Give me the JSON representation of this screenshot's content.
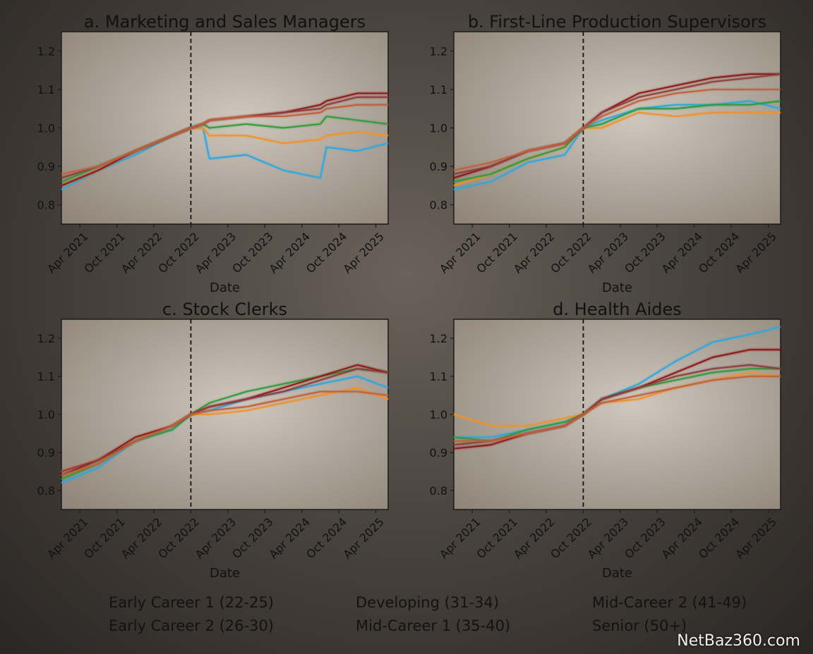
{
  "xaxis_label": "Date",
  "x_ticks": [
    "Apr 2021",
    "Oct 2021",
    "Apr 2022",
    "Oct 2022",
    "Apr 2023",
    "Oct 2023",
    "Apr 2024",
    "Oct 2024",
    "Apr 2025"
  ],
  "watermark": "NetBaz360.com",
  "legend": [
    {
      "name": "Early Career 1 (22-25)",
      "color": "#2ea7e0"
    },
    {
      "name": "Early Career 2 (26-30)",
      "color": "#f0922b"
    },
    {
      "name": "Developing (31-34)",
      "color": "#2f9a3a"
    },
    {
      "name": "Mid-Career 1 (35-40)",
      "color": "#8c1414"
    },
    {
      "name": "Mid-Career 2 (41-49)",
      "color": "#8e3a3a"
    },
    {
      "name": "Senior (50+)",
      "color": "#c0603a"
    }
  ],
  "chart_data": [
    {
      "type": "line",
      "title": "a. Marketing and Sales Managers",
      "xlabel": "Date",
      "ylim": [
        0.75,
        1.25
      ],
      "yticks": [
        0.8,
        0.9,
        1.0,
        1.1,
        1.2
      ],
      "x_range": [
        "Jan 2021",
        "Jun 2025"
      ],
      "reference_line": "Oct 2022",
      "x": [
        "Jan 2021",
        "Jul 2021",
        "Jan 2022",
        "Jul 2022",
        "Oct 2022",
        "Dec 2022",
        "Jan 2023",
        "Jul 2023",
        "Jan 2024",
        "Jul 2024",
        "Aug 2024",
        "Jan 2025",
        "Jun 2025"
      ],
      "series": [
        {
          "name": "Early Career 1 (22-25)",
          "values": [
            0.84,
            0.89,
            0.93,
            0.98,
            1.0,
            1.0,
            0.92,
            0.93,
            0.89,
            0.87,
            0.95,
            0.94,
            0.96
          ]
        },
        {
          "name": "Early Career 2 (26-30)",
          "values": [
            0.85,
            0.89,
            0.94,
            0.98,
            1.0,
            1.0,
            0.98,
            0.98,
            0.96,
            0.97,
            0.98,
            0.99,
            0.98
          ]
        },
        {
          "name": "Developing (31-34)",
          "values": [
            0.86,
            0.9,
            0.94,
            0.98,
            1.0,
            1.01,
            1.0,
            1.01,
            1.0,
            1.01,
            1.03,
            1.02,
            1.01
          ]
        },
        {
          "name": "Mid-Career 1 (35-40)",
          "values": [
            0.85,
            0.89,
            0.94,
            0.98,
            1.0,
            1.01,
            1.02,
            1.03,
            1.04,
            1.06,
            1.07,
            1.09,
            1.09
          ]
        },
        {
          "name": "Mid-Career 2 (41-49)",
          "values": [
            0.87,
            0.9,
            0.94,
            0.98,
            1.0,
            1.01,
            1.02,
            1.03,
            1.04,
            1.05,
            1.06,
            1.08,
            1.08
          ]
        },
        {
          "name": "Senior (50+)",
          "values": [
            0.88,
            0.9,
            0.94,
            0.98,
            1.0,
            1.01,
            1.02,
            1.03,
            1.03,
            1.04,
            1.05,
            1.06,
            1.06
          ]
        }
      ]
    },
    {
      "type": "line",
      "title": "b. First-Line Production Supervisors",
      "xlabel": "Date",
      "ylim": [
        0.75,
        1.25
      ],
      "yticks": [
        0.8,
        0.9,
        1.0,
        1.1,
        1.2
      ],
      "x_range": [
        "Jan 2021",
        "Jun 2025"
      ],
      "reference_line": "Oct 2022",
      "x": [
        "Jan 2021",
        "Jul 2021",
        "Jan 2022",
        "Jul 2022",
        "Oct 2022",
        "Jan 2023",
        "Jul 2023",
        "Jan 2024",
        "Jul 2024",
        "Jan 2025",
        "Jun 2025"
      ],
      "series": [
        {
          "name": "Early Career 1 (22-25)",
          "values": [
            0.84,
            0.86,
            0.91,
            0.93,
            1.0,
            1.02,
            1.05,
            1.06,
            1.06,
            1.07,
            1.05
          ]
        },
        {
          "name": "Early Career 2 (26-30)",
          "values": [
            0.85,
            0.88,
            0.92,
            0.95,
            1.0,
            1.0,
            1.04,
            1.03,
            1.04,
            1.04,
            1.04
          ]
        },
        {
          "name": "Developing (31-34)",
          "values": [
            0.86,
            0.88,
            0.92,
            0.95,
            1.0,
            1.01,
            1.05,
            1.05,
            1.06,
            1.06,
            1.07
          ]
        },
        {
          "name": "Mid-Career 1 (35-40)",
          "values": [
            0.87,
            0.9,
            0.94,
            0.96,
            1.0,
            1.04,
            1.09,
            1.11,
            1.13,
            1.14,
            1.14
          ]
        },
        {
          "name": "Mid-Career 2 (41-49)",
          "values": [
            0.88,
            0.9,
            0.94,
            0.96,
            1.0,
            1.04,
            1.08,
            1.1,
            1.12,
            1.13,
            1.14
          ]
        },
        {
          "name": "Senior (50+)",
          "values": [
            0.89,
            0.91,
            0.94,
            0.96,
            1.0,
            1.03,
            1.07,
            1.09,
            1.1,
            1.1,
            1.1
          ]
        }
      ]
    },
    {
      "type": "line",
      "title": "c. Stock Clerks",
      "xlabel": "Date",
      "ylim": [
        0.75,
        1.25
      ],
      "yticks": [
        0.8,
        0.9,
        1.0,
        1.1,
        1.2
      ],
      "x_range": [
        "Jan 2021",
        "Jun 2025"
      ],
      "reference_line": "Oct 2022",
      "x": [
        "Jan 2021",
        "Jul 2021",
        "Jan 2022",
        "Jul 2022",
        "Oct 2022",
        "Jan 2023",
        "Jul 2023",
        "Jan 2024",
        "Jul 2024",
        "Jan 2025",
        "Jun 2025"
      ],
      "series": [
        {
          "name": "Early Career 1 (22-25)",
          "values": [
            0.82,
            0.86,
            0.93,
            0.96,
            1.0,
            1.01,
            1.04,
            1.06,
            1.08,
            1.1,
            1.07
          ]
        },
        {
          "name": "Early Career 2 (26-30)",
          "values": [
            0.85,
            0.88,
            0.93,
            0.97,
            1.0,
            1.0,
            1.01,
            1.03,
            1.05,
            1.07,
            1.04
          ]
        },
        {
          "name": "Developing (31-34)",
          "values": [
            0.83,
            0.87,
            0.93,
            0.96,
            1.0,
            1.03,
            1.06,
            1.08,
            1.1,
            1.12,
            1.11
          ]
        },
        {
          "name": "Mid-Career 1 (35-40)",
          "values": [
            0.84,
            0.88,
            0.94,
            0.97,
            1.0,
            1.02,
            1.04,
            1.07,
            1.1,
            1.13,
            1.11
          ]
        },
        {
          "name": "Mid-Career 2 (41-49)",
          "values": [
            0.85,
            0.88,
            0.93,
            0.97,
            1.0,
            1.02,
            1.04,
            1.06,
            1.09,
            1.12,
            1.11
          ]
        },
        {
          "name": "Senior (50+)",
          "values": [
            0.84,
            0.87,
            0.93,
            0.97,
            1.0,
            1.01,
            1.02,
            1.04,
            1.06,
            1.06,
            1.05
          ]
        }
      ]
    },
    {
      "type": "line",
      "title": "d. Health Aides",
      "xlabel": "Date",
      "ylim": [
        0.75,
        1.25
      ],
      "yticks": [
        0.8,
        0.9,
        1.0,
        1.1,
        1.2
      ],
      "x_range": [
        "Jan 2021",
        "Jun 2025"
      ],
      "reference_line": "Oct 2022",
      "x": [
        "Jan 2021",
        "Jul 2021",
        "Jan 2022",
        "Jul 2022",
        "Oct 2022",
        "Jan 2023",
        "Jul 2023",
        "Jan 2024",
        "Jul 2024",
        "Jan 2025",
        "Jun 2025"
      ],
      "series": [
        {
          "name": "Early Career 1 (22-25)",
          "values": [
            0.94,
            0.94,
            0.96,
            0.98,
            1.0,
            1.04,
            1.08,
            1.14,
            1.19,
            1.21,
            1.23
          ]
        },
        {
          "name": "Early Career 2 (26-30)",
          "values": [
            1.0,
            0.97,
            0.97,
            0.99,
            1.0,
            1.03,
            1.04,
            1.07,
            1.09,
            1.11,
            1.1
          ]
        },
        {
          "name": "Developing (31-34)",
          "values": [
            0.94,
            0.93,
            0.96,
            0.98,
            1.0,
            1.04,
            1.07,
            1.09,
            1.11,
            1.12,
            1.12
          ]
        },
        {
          "name": "Mid-Career 1 (35-40)",
          "values": [
            0.91,
            0.92,
            0.95,
            0.97,
            1.0,
            1.04,
            1.07,
            1.11,
            1.15,
            1.17,
            1.17
          ]
        },
        {
          "name": "Mid-Career 2 (41-49)",
          "values": [
            0.92,
            0.93,
            0.95,
            0.97,
            1.0,
            1.04,
            1.07,
            1.1,
            1.12,
            1.13,
            1.12
          ]
        },
        {
          "name": "Senior (50+)",
          "values": [
            0.93,
            0.93,
            0.95,
            0.97,
            1.0,
            1.03,
            1.05,
            1.07,
            1.09,
            1.1,
            1.1
          ]
        }
      ]
    }
  ]
}
